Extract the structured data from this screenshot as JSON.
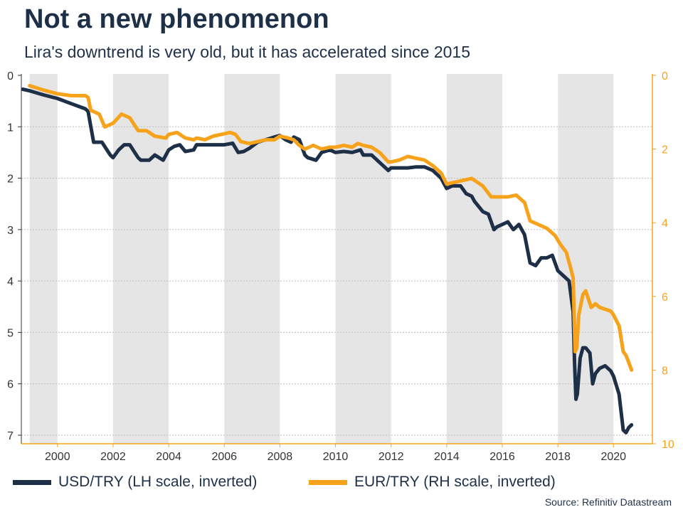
{
  "title": "Not a new phenomenon",
  "subtitle": "Lira's downtrend is very old, but it has accelerated since 2015",
  "source": "Source: Refinitiv Datastream",
  "colors": {
    "usd": "#1e3048",
    "eur": "#f7a21b",
    "shade": "#e5e5e5",
    "axis_left": "#333333",
    "axis_right": "#f7a21b"
  },
  "chart_data": {
    "type": "line",
    "x_ticks": [
      "2000",
      "2002",
      "2004",
      "2006",
      "2008",
      "2010",
      "2012",
      "2014",
      "2016",
      "2018",
      "2020"
    ],
    "y_left": {
      "ticks": [
        "0",
        "1",
        "2",
        "3",
        "4",
        "5",
        "6",
        "7"
      ],
      "range": [
        0,
        7
      ],
      "inverted": true
    },
    "y_right": {
      "ticks": [
        "0",
        "2",
        "4",
        "6",
        "8",
        "10"
      ],
      "range": [
        0,
        10
      ],
      "inverted": true
    },
    "shaded_ranges": [
      [
        1999,
        2000
      ],
      [
        2002,
        2004
      ],
      [
        2006,
        2008
      ],
      [
        2010,
        2012
      ],
      [
        2014,
        2016
      ],
      [
        2018,
        2020
      ]
    ],
    "x_range": [
      1998.7,
      2021.4
    ],
    "grid": "horizontal dotted",
    "series": [
      {
        "name": "USD/TRY (LH scale, inverted)",
        "axis": "left",
        "points": [
          [
            1998.75,
            0.27
          ],
          [
            1999.0,
            0.3
          ],
          [
            1999.5,
            0.38
          ],
          [
            2000.0,
            0.45
          ],
          [
            2000.5,
            0.55
          ],
          [
            2001.0,
            0.65
          ],
          [
            2001.1,
            0.7
          ],
          [
            2001.2,
            1.0
          ],
          [
            2001.3,
            1.3
          ],
          [
            2001.6,
            1.3
          ],
          [
            2001.9,
            1.55
          ],
          [
            2002.0,
            1.6
          ],
          [
            2002.2,
            1.45
          ],
          [
            2002.4,
            1.35
          ],
          [
            2002.6,
            1.35
          ],
          [
            2002.9,
            1.6
          ],
          [
            2003.0,
            1.65
          ],
          [
            2003.3,
            1.65
          ],
          [
            2003.5,
            1.55
          ],
          [
            2003.8,
            1.65
          ],
          [
            2004.0,
            1.45
          ],
          [
            2004.2,
            1.38
          ],
          [
            2004.4,
            1.35
          ],
          [
            2004.6,
            1.48
          ],
          [
            2004.9,
            1.45
          ],
          [
            2005.0,
            1.35
          ],
          [
            2005.3,
            1.35
          ],
          [
            2005.6,
            1.35
          ],
          [
            2005.9,
            1.35
          ],
          [
            2006.0,
            1.35
          ],
          [
            2006.3,
            1.32
          ],
          [
            2006.5,
            1.5
          ],
          [
            2006.7,
            1.48
          ],
          [
            2006.9,
            1.42
          ],
          [
            2007.2,
            1.3
          ],
          [
            2007.5,
            1.25
          ],
          [
            2007.8,
            1.2
          ],
          [
            2008.0,
            1.17
          ],
          [
            2008.2,
            1.25
          ],
          [
            2008.4,
            1.3
          ],
          [
            2008.5,
            1.2
          ],
          [
            2008.7,
            1.25
          ],
          [
            2008.9,
            1.55
          ],
          [
            2009.0,
            1.6
          ],
          [
            2009.3,
            1.65
          ],
          [
            2009.5,
            1.5
          ],
          [
            2009.8,
            1.45
          ],
          [
            2010.0,
            1.5
          ],
          [
            2010.3,
            1.48
          ],
          [
            2010.6,
            1.5
          ],
          [
            2010.9,
            1.45
          ],
          [
            2011.0,
            1.55
          ],
          [
            2011.3,
            1.55
          ],
          [
            2011.6,
            1.7
          ],
          [
            2011.9,
            1.85
          ],
          [
            2012.0,
            1.8
          ],
          [
            2012.3,
            1.8
          ],
          [
            2012.6,
            1.8
          ],
          [
            2012.9,
            1.78
          ],
          [
            2013.2,
            1.78
          ],
          [
            2013.5,
            1.85
          ],
          [
            2013.8,
            2.0
          ],
          [
            2014.0,
            2.2
          ],
          [
            2014.2,
            2.15
          ],
          [
            2014.5,
            2.15
          ],
          [
            2014.7,
            2.3
          ],
          [
            2014.9,
            2.35
          ],
          [
            2015.0,
            2.45
          ],
          [
            2015.3,
            2.65
          ],
          [
            2015.5,
            2.7
          ],
          [
            2015.7,
            3.0
          ],
          [
            2015.8,
            2.95
          ],
          [
            2016.0,
            2.9
          ],
          [
            2016.2,
            2.85
          ],
          [
            2016.4,
            3.0
          ],
          [
            2016.6,
            2.9
          ],
          [
            2016.8,
            3.1
          ],
          [
            2017.0,
            3.65
          ],
          [
            2017.2,
            3.7
          ],
          [
            2017.4,
            3.55
          ],
          [
            2017.6,
            3.55
          ],
          [
            2017.8,
            3.5
          ],
          [
            2018.0,
            3.8
          ],
          [
            2018.2,
            3.9
          ],
          [
            2018.4,
            4.0
          ],
          [
            2018.55,
            4.6
          ],
          [
            2018.6,
            5.6
          ],
          [
            2018.65,
            6.3
          ],
          [
            2018.7,
            6.2
          ],
          [
            2018.8,
            5.5
          ],
          [
            2018.9,
            5.3
          ],
          [
            2019.0,
            5.3
          ],
          [
            2019.15,
            5.4
          ],
          [
            2019.25,
            6.0
          ],
          [
            2019.35,
            5.8
          ],
          [
            2019.5,
            5.7
          ],
          [
            2019.7,
            5.65
          ],
          [
            2019.9,
            5.75
          ],
          [
            2020.0,
            5.85
          ],
          [
            2020.2,
            6.2
          ],
          [
            2020.35,
            6.9
          ],
          [
            2020.45,
            6.95
          ],
          [
            2020.55,
            6.85
          ],
          [
            2020.65,
            6.8
          ]
        ]
      },
      {
        "name": "EUR/TRY (RH scale, inverted)",
        "axis": "right",
        "points": [
          [
            1999.0,
            0.28
          ],
          [
            1999.5,
            0.4
          ],
          [
            2000.0,
            0.5
          ],
          [
            2000.5,
            0.55
          ],
          [
            2001.0,
            0.55
          ],
          [
            2001.1,
            0.6
          ],
          [
            2001.2,
            0.95
          ],
          [
            2001.5,
            1.05
          ],
          [
            2001.7,
            1.4
          ],
          [
            2002.0,
            1.3
          ],
          [
            2002.3,
            1.05
          ],
          [
            2002.6,
            1.15
          ],
          [
            2002.9,
            1.5
          ],
          [
            2003.2,
            1.5
          ],
          [
            2003.5,
            1.65
          ],
          [
            2003.9,
            1.7
          ],
          [
            2004.0,
            1.6
          ],
          [
            2004.3,
            1.55
          ],
          [
            2004.6,
            1.7
          ],
          [
            2004.9,
            1.75
          ],
          [
            2005.0,
            1.7
          ],
          [
            2005.3,
            1.75
          ],
          [
            2005.6,
            1.65
          ],
          [
            2005.9,
            1.6
          ],
          [
            2006.2,
            1.55
          ],
          [
            2006.4,
            1.6
          ],
          [
            2006.6,
            1.8
          ],
          [
            2006.9,
            1.85
          ],
          [
            2007.2,
            1.8
          ],
          [
            2007.5,
            1.75
          ],
          [
            2007.8,
            1.75
          ],
          [
            2008.0,
            1.65
          ],
          [
            2008.3,
            1.7
          ],
          [
            2008.5,
            1.75
          ],
          [
            2008.7,
            1.9
          ],
          [
            2008.9,
            2.0
          ],
          [
            2009.2,
            1.9
          ],
          [
            2009.5,
            2.0
          ],
          [
            2009.8,
            1.95
          ],
          [
            2010.0,
            1.95
          ],
          [
            2010.3,
            1.9
          ],
          [
            2010.6,
            1.95
          ],
          [
            2010.8,
            1.85
          ],
          [
            2011.0,
            1.9
          ],
          [
            2011.3,
            1.95
          ],
          [
            2011.6,
            2.1
          ],
          [
            2011.9,
            2.35
          ],
          [
            2012.0,
            2.35
          ],
          [
            2012.3,
            2.3
          ],
          [
            2012.6,
            2.2
          ],
          [
            2012.9,
            2.25
          ],
          [
            2013.2,
            2.3
          ],
          [
            2013.5,
            2.45
          ],
          [
            2013.8,
            2.65
          ],
          [
            2014.0,
            2.95
          ],
          [
            2014.3,
            2.9
          ],
          [
            2014.6,
            2.85
          ],
          [
            2014.9,
            2.8
          ],
          [
            2015.0,
            2.85
          ],
          [
            2015.3,
            3.0
          ],
          [
            2015.6,
            3.3
          ],
          [
            2015.9,
            3.3
          ],
          [
            2016.2,
            3.3
          ],
          [
            2016.5,
            3.25
          ],
          [
            2016.8,
            3.45
          ],
          [
            2017.0,
            3.95
          ],
          [
            2017.3,
            4.05
          ],
          [
            2017.6,
            4.15
          ],
          [
            2017.9,
            4.35
          ],
          [
            2018.1,
            4.6
          ],
          [
            2018.3,
            4.8
          ],
          [
            2018.45,
            5.2
          ],
          [
            2018.55,
            5.5
          ],
          [
            2018.62,
            7.5
          ],
          [
            2018.68,
            7.4
          ],
          [
            2018.75,
            6.5
          ],
          [
            2018.9,
            5.95
          ],
          [
            2019.0,
            5.85
          ],
          [
            2019.2,
            6.3
          ],
          [
            2019.35,
            6.2
          ],
          [
            2019.5,
            6.3
          ],
          [
            2019.7,
            6.35
          ],
          [
            2019.9,
            6.4
          ],
          [
            2020.0,
            6.5
          ],
          [
            2020.2,
            6.8
          ],
          [
            2020.35,
            7.5
          ],
          [
            2020.45,
            7.6
          ],
          [
            2020.55,
            7.8
          ],
          [
            2020.65,
            8.0
          ]
        ]
      }
    ]
  }
}
